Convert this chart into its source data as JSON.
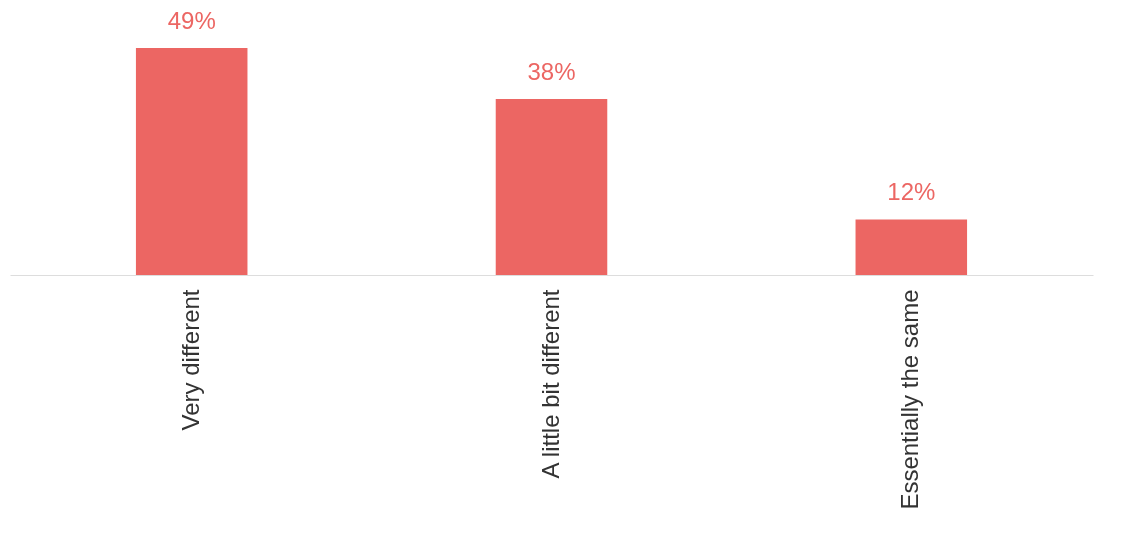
{
  "chart_data": {
    "type": "bar",
    "categories": [
      "Very different",
      "A little bit different",
      "Essentially the same"
    ],
    "values": [
      49,
      38,
      12
    ],
    "value_labels": [
      "49%",
      "38%",
      "12%"
    ],
    "color": "#ec6663",
    "grid": false
  }
}
